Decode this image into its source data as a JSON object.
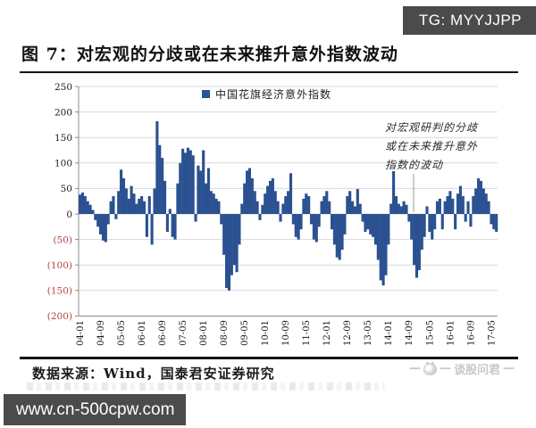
{
  "badge": {
    "text": "TG: MYYJJPP"
  },
  "figure": {
    "title": "图 7：对宏观的分歧或在未来推升意外指数波动",
    "source": "数据来源：Wind，国泰君安证券研究"
  },
  "legend": {
    "label": "中国花旗经济意外指数"
  },
  "annotation": {
    "lines": [
      "对宏观研判的分歧",
      "或在未来推升意外",
      "指数的波动"
    ]
  },
  "watermark": {
    "dash": "—",
    "text": "谈股问君",
    "logo": "mascot-logo-icon"
  },
  "footer": {
    "url": "www.cn-500cpw.com"
  },
  "chart_data": {
    "type": "bar",
    "series_name": "中国花旗经济意外指数",
    "x_start": "2004-01",
    "x_frequency": "monthly",
    "xticks": [
      "04-01",
      "04-09",
      "05-05",
      "06-01",
      "06-09",
      "07-05",
      "08-01",
      "08-09",
      "09-05",
      "10-01",
      "10-09",
      "11-05",
      "12-01",
      "12-09",
      "13-05",
      "14-01",
      "14-09",
      "15-05",
      "16-01",
      "16-09",
      "17-05"
    ],
    "xtick_every": 8,
    "ylim": [
      -200,
      250
    ],
    "ytick_step": 50,
    "grid": true,
    "legend_position": "top-center",
    "bar_color": "#2B5191",
    "pos_label_color": "#1a1a1a",
    "neg_label_color": "#B0423F",
    "grid_color": "#d9d9d9",
    "axis_color": "#8c8c8c",
    "values": [
      38,
      42,
      35,
      25,
      18,
      8,
      -12,
      -25,
      -40,
      -52,
      -55,
      -20,
      25,
      35,
      -10,
      45,
      87,
      70,
      50,
      30,
      55,
      40,
      20,
      30,
      35,
      25,
      -45,
      35,
      -60,
      50,
      182,
      135,
      110,
      65,
      -35,
      10,
      -45,
      -50,
      60,
      100,
      128,
      120,
      130,
      125,
      115,
      -15,
      95,
      85,
      125,
      60,
      90,
      45,
      40,
      30,
      25,
      -20,
      -80,
      -145,
      -150,
      -120,
      -100,
      -114,
      -60,
      20,
      60,
      85,
      90,
      70,
      45,
      25,
      -12,
      18,
      40,
      55,
      65,
      70,
      45,
      25,
      -15,
      20,
      35,
      45,
      80,
      -20,
      -45,
      -50,
      -30,
      30,
      40,
      35,
      -20,
      -50,
      -55,
      -25,
      25,
      35,
      45,
      25,
      -30,
      -60,
      -85,
      -90,
      -70,
      -40,
      35,
      45,
      25,
      15,
      49,
      20,
      -15,
      -35,
      -30,
      -40,
      -45,
      -60,
      -90,
      -130,
      -140,
      -120,
      -60,
      20,
      84,
      35,
      20,
      15,
      25,
      18,
      -15,
      -50,
      -100,
      -125,
      -110,
      -70,
      -45,
      15,
      -35,
      -50,
      -30,
      25,
      30,
      -30,
      25,
      35,
      45,
      30,
      -30,
      40,
      55,
      35,
      -15,
      25,
      -25,
      35,
      50,
      70,
      65,
      50,
      40,
      25,
      -20,
      -30,
      -35
    ]
  }
}
